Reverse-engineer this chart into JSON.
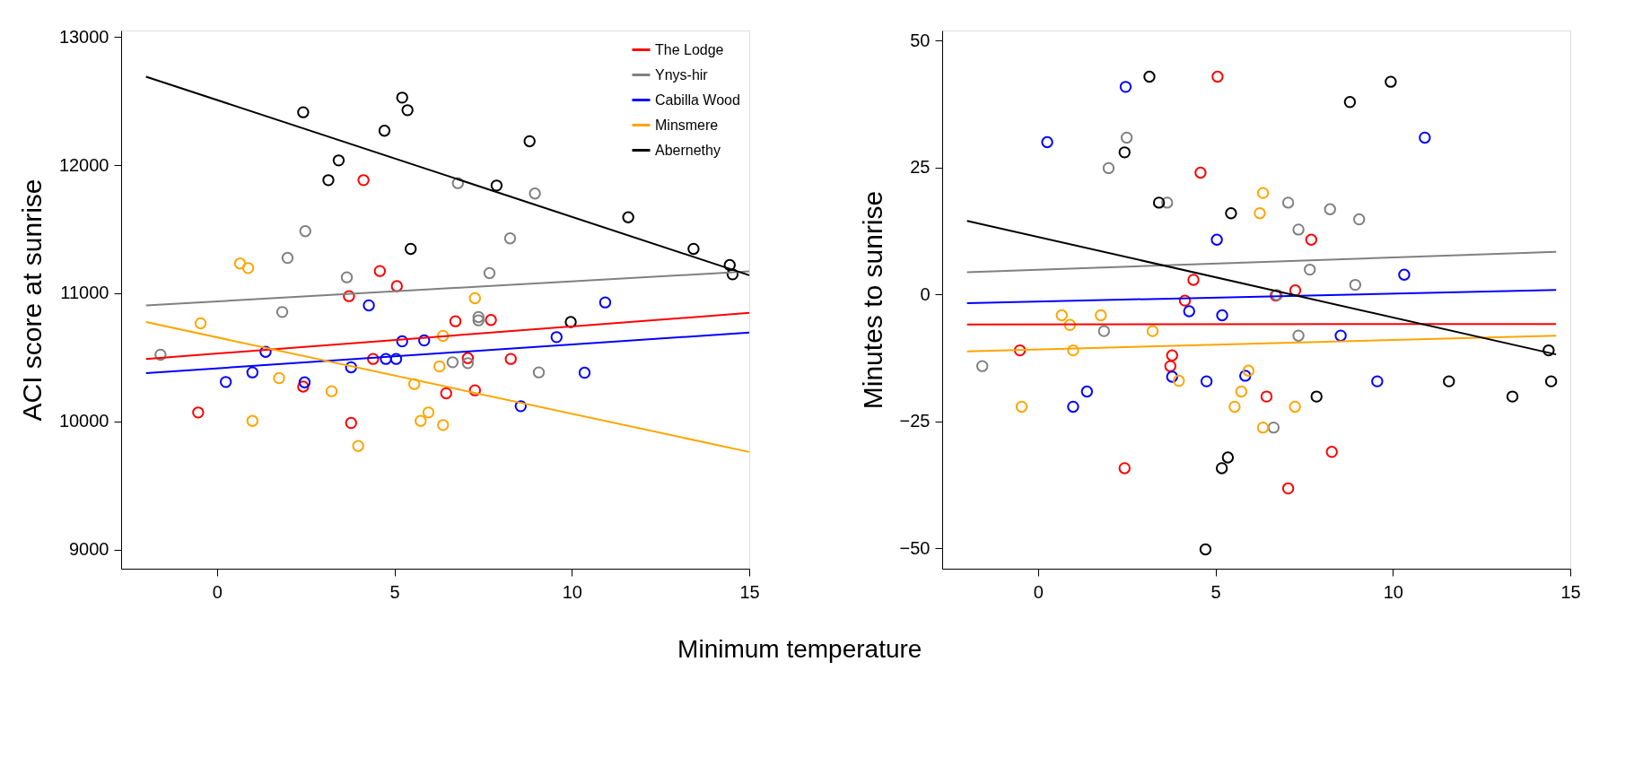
{
  "chart_data": [
    {
      "type": "scatter",
      "xlabel": "Minimum temperature",
      "ylabel": "ACI score at sunrise",
      "xlim": [
        -2.7,
        15
      ],
      "xticks": [
        0,
        5,
        10,
        15
      ],
      "ylim": [
        8850,
        13050
      ],
      "yticks": [
        9000,
        10000,
        11000,
        12000,
        13000
      ],
      "grid": false,
      "legend": "top right",
      "series": [
        {
          "marker": "circle",
          "color": "#ff0000",
          "x": [
            4.13,
            4.59,
            5.07,
            3.72,
            6.72,
            7.72,
            4.4,
            7.07,
            8.28,
            2.43,
            6.46,
            7.27,
            -0.53,
            3.78
          ],
          "values": [
            11882,
            11173,
            11055,
            10977,
            10781,
            10791,
            10487,
            10493,
            10487,
            10271,
            10219,
            10242,
            10069,
            9987
          ]
        },
        {
          "marker": "circle",
          "color": "#808080",
          "x": [
            6.79,
            8.96,
            2.49,
            8.26,
            1.99,
            3.66,
            7.68,
            1.84,
            -1.59,
            6.64,
            7.07,
            7.37,
            7.37,
            9.07
          ],
          "values": [
            11859,
            11778,
            11484,
            11428,
            11275,
            11124,
            11157,
            10853,
            10520,
            10461,
            10454,
            10814,
            10788,
            10382
          ]
        },
        {
          "marker": "circle",
          "color": "#0000ff",
          "x": [
            4.28,
            10.94,
            1.37,
            5.22,
            5.84,
            9.57,
            4.76,
            5.05,
            3.78,
            1.0,
            0.25,
            2.47,
            10.36,
            8.56
          ],
          "values": [
            10905,
            10928,
            10542,
            10624,
            10631,
            10657,
            10487,
            10487,
            10422,
            10382,
            10307,
            10304,
            10379,
            10118
          ]
        },
        {
          "marker": "circle",
          "color": "#ffa500",
          "x": [
            0.65,
            0.88,
            -0.46,
            7.27,
            6.37,
            1.75,
            6.27,
            5.56,
            3.23,
            1.0,
            5.96,
            5.74,
            6.37,
            3.98
          ],
          "values": [
            11232,
            11196,
            10765,
            10961,
            10667,
            10337,
            10428,
            10291,
            10235,
            10003,
            10069,
            10003,
            9971,
            9807
          ]
        },
        {
          "marker": "circle",
          "color": "#000000",
          "x": [
            2.43,
            5.22,
            5.37,
            4.72,
            3.43,
            3.14,
            8.81,
            7.88,
            11.59,
            13.43,
            5.46,
            14.45,
            14.53,
            9.97
          ],
          "values": [
            12412,
            12526,
            12428,
            12268,
            12036,
            11882,
            12186,
            11840,
            11592,
            11346,
            11346,
            11219,
            11147,
            10775
          ]
        },
        {
          "type": "line",
          "name": "The Lodge",
          "color": "#ff0000",
          "x": [
            -2,
            15
          ],
          "values": [
            10487,
            10846
          ]
        },
        {
          "type": "line",
          "name": "Ynys-hir",
          "color": "#808080",
          "x": [
            -2,
            15
          ],
          "values": [
            10905,
            11170
          ]
        },
        {
          "type": "line",
          "name": "Cabilla Wood",
          "color": "#0000ff",
          "x": [
            -2,
            15
          ],
          "values": [
            10376,
            10693
          ]
        },
        {
          "type": "line",
          "name": "Minsmere",
          "color": "#ffa500",
          "x": [
            -2,
            15
          ],
          "values": [
            10775,
            9761
          ]
        },
        {
          "type": "line",
          "name": "Abernethy",
          "color": "#000000",
          "x": [
            -2,
            15
          ],
          "values": [
            12690,
            11140
          ]
        }
      ]
    },
    {
      "type": "scatter",
      "ylabel": "Minutes to sunrise",
      "xlim": [
        -2.7,
        15
      ],
      "xticks": [
        0,
        5,
        10,
        15
      ],
      "ylim": [
        -54,
        52
      ],
      "yticks": [
        -50,
        -25,
        0,
        25,
        50
      ],
      "grid": false,
      "legend": false,
      "series": [
        {
          "marker": "circle",
          "color": "#ff0000",
          "x": [
            5.06,
            4.58,
            7.7,
            4.38,
            7.25,
            4.14,
            3.78,
            3.73,
            -0.51,
            6.44,
            2.44,
            8.28,
            7.05,
            6.7
          ],
          "values": [
            42.9,
            24.0,
            10.8,
            2.9,
            0.8,
            -1.2,
            -12.0,
            -14.1,
            -11.0,
            -20.1,
            -34.2,
            -31.0,
            -38.2,
            -0.2
          ]
        },
        {
          "marker": "circle",
          "color": "#808080",
          "x": [
            2.5,
            1.99,
            3.64,
            7.05,
            8.23,
            9.05,
            7.34,
            7.66,
            8.94,
            6.73,
            1.86,
            7.34,
            -1.57,
            6.64
          ],
          "values": [
            30.9,
            24.9,
            18.1,
            18.1,
            16.8,
            14.8,
            12.8,
            4.9,
            1.9,
            -0.1,
            -7.2,
            -8.1,
            -14.1,
            -26.2
          ]
        },
        {
          "marker": "circle",
          "color": "#0000ff",
          "x": [
            2.47,
            0.26,
            10.9,
            5.04,
            10.32,
            5.19,
            4.26,
            8.53,
            3.78,
            4.75,
            5.84,
            9.56,
            1.38,
            0.99
          ],
          "values": [
            40.9,
            30.0,
            30.9,
            10.8,
            3.9,
            -4.1,
            -3.3,
            -8.1,
            -16.2,
            -17.1,
            -16.0,
            -17.1,
            -19.1,
            -22.1
          ]
        },
        {
          "marker": "circle",
          "color": "#ffa500",
          "x": [
            6.34,
            6.25,
            0.67,
            0.9,
            1.77,
            3.23,
            0.99,
            3.97,
            5.93,
            5.73,
            5.54,
            7.24,
            6.34,
            -0.46
          ],
          "values": [
            20.0,
            16.0,
            -4.1,
            -6.0,
            -4.1,
            -7.2,
            -11.0,
            -17.0,
            -15.0,
            -19.1,
            -22.1,
            -22.1,
            -26.2,
            -22.1
          ]
        },
        {
          "marker": "circle",
          "color": "#000000",
          "x": [
            3.14,
            9.94,
            8.79,
            2.44,
            3.41,
            5.44,
            14.39,
            14.46,
            11.58,
            13.37,
            7.85,
            5.35,
            5.18,
            4.72
          ],
          "values": [
            42.9,
            41.9,
            37.9,
            28.0,
            18.1,
            16.0,
            -11.0,
            -17.1,
            -17.1,
            -20.1,
            -20.1,
            -32.1,
            -34.2,
            -50.2
          ]
        },
        {
          "type": "line",
          "color": "#ff0000",
          "x": [
            -2,
            14.6
          ],
          "values": [
            -5.9,
            -5.8
          ]
        },
        {
          "type": "line",
          "color": "#808080",
          "x": [
            -2,
            14.6
          ],
          "values": [
            4.4,
            8.4
          ]
        },
        {
          "type": "line",
          "color": "#0000ff",
          "x": [
            -2,
            14.6
          ],
          "values": [
            -1.7,
            0.9
          ]
        },
        {
          "type": "line",
          "color": "#ffa500",
          "x": [
            -2,
            14.6
          ],
          "values": [
            -11.2,
            -8.1
          ]
        },
        {
          "type": "line",
          "color": "#000000",
          "x": [
            -2,
            14.6
          ],
          "values": [
            14.5,
            -11.8
          ]
        }
      ]
    }
  ]
}
